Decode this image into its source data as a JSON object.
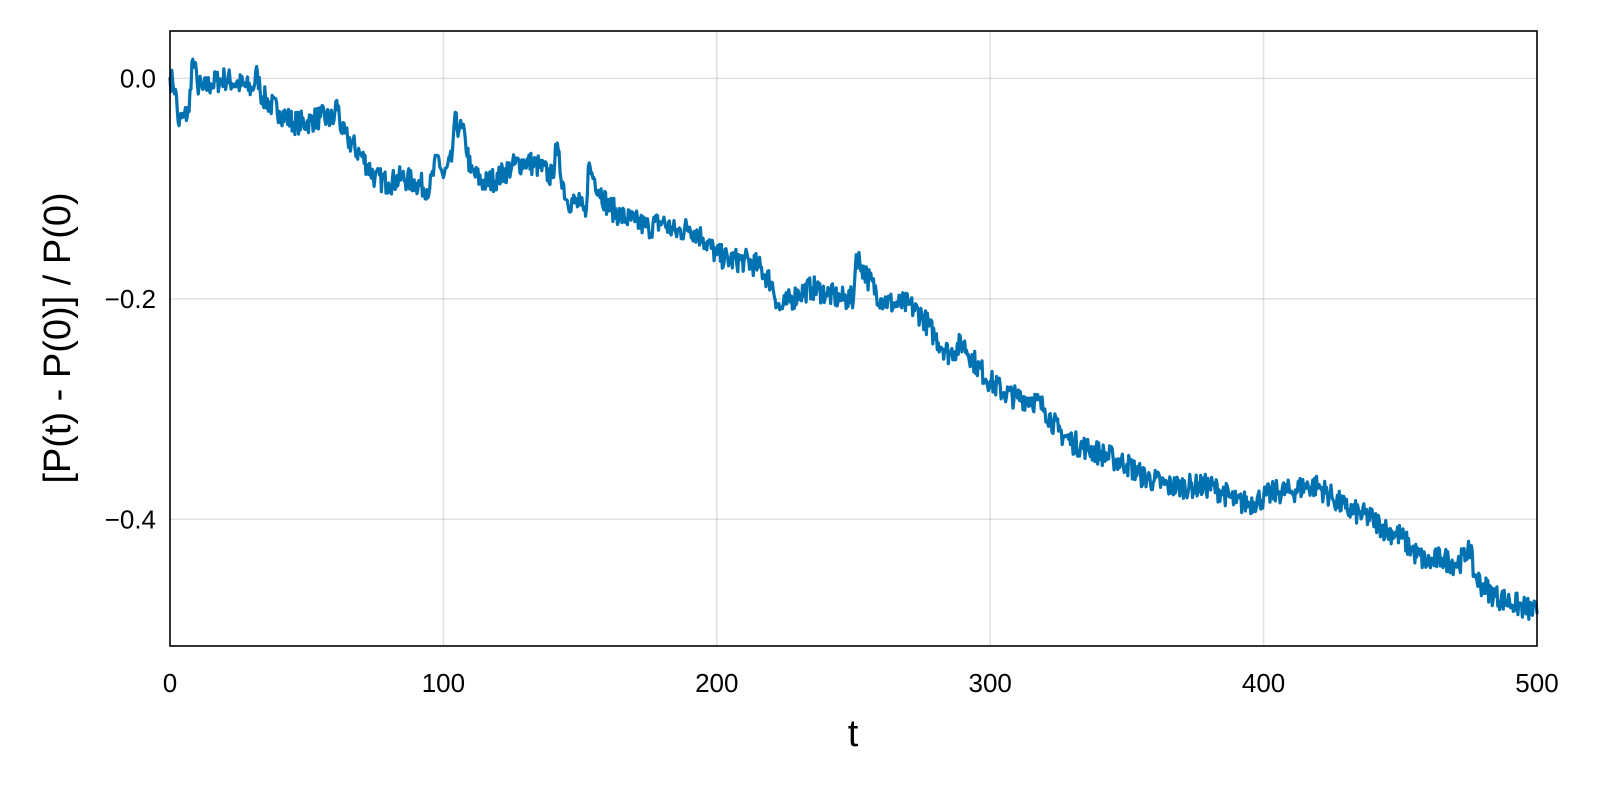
{
  "chart_data": {
    "type": "line",
    "title": "",
    "xlabel": "t",
    "ylabel": "[P(t) - P(0)] / P(0)",
    "xlim": [
      0,
      500
    ],
    "ylim": [
      -0.515,
      0.043
    ],
    "x_ticks": [
      0,
      100,
      200,
      300,
      400,
      500
    ],
    "x_tick_labels": [
      "0",
      "100",
      "200",
      "300",
      "400",
      "500"
    ],
    "y_ticks": [
      0.0,
      -0.2,
      -0.4
    ],
    "y_tick_labels": [
      "0.0",
      "−0.2",
      "−0.4"
    ],
    "grid": true,
    "series_color": "#0072B2",
    "series": [
      {
        "x": [
          0,
          1,
          2,
          3,
          5,
          7,
          8,
          9,
          10,
          12,
          15,
          20,
          25,
          30,
          32,
          33,
          35,
          40,
          45,
          50,
          55,
          60,
          61,
          63,
          65,
          70,
          75,
          80,
          85,
          90,
          95,
          98,
          100,
          103,
          104,
          106,
          108,
          110,
          115,
          120,
          125,
          130,
          135,
          140,
          141,
          145,
          150,
          152,
          153,
          155,
          160,
          165,
          170,
          175,
          180,
          185,
          190,
          195,
          200,
          205,
          210,
          215,
          220,
          223,
          225,
          230,
          235,
          240,
          245,
          250,
          251,
          253,
          255,
          260,
          265,
          270,
          275,
          280,
          285,
          290,
          295,
          300,
          305,
          310,
          315,
          320,
          325,
          330,
          335,
          340,
          345,
          350,
          355,
          360,
          365,
          370,
          375,
          380,
          385,
          390,
          395,
          400,
          405,
          410,
          415,
          420,
          425,
          430,
          435,
          440,
          445,
          450,
          455,
          460,
          465,
          470,
          474,
          475,
          477,
          480,
          485,
          490,
          495,
          500
        ],
        "y": [
          0.0,
          -0.003,
          -0.01,
          -0.04,
          -0.035,
          -0.03,
          0.015,
          0.01,
          -0.005,
          -0.01,
          -0.005,
          0.0,
          -0.005,
          -0.01,
          0.005,
          -0.012,
          -0.02,
          -0.03,
          -0.04,
          -0.04,
          -0.035,
          -0.038,
          -0.02,
          -0.05,
          -0.055,
          -0.07,
          -0.09,
          -0.095,
          -0.09,
          -0.095,
          -0.1,
          -0.07,
          -0.09,
          -0.075,
          -0.04,
          -0.045,
          -0.055,
          -0.085,
          -0.095,
          -0.09,
          -0.08,
          -0.075,
          -0.08,
          -0.09,
          -0.06,
          -0.11,
          -0.115,
          -0.125,
          -0.08,
          -0.09,
          -0.115,
          -0.125,
          -0.13,
          -0.135,
          -0.13,
          -0.14,
          -0.135,
          -0.145,
          -0.16,
          -0.165,
          -0.165,
          -0.17,
          -0.185,
          -0.21,
          -0.205,
          -0.195,
          -0.19,
          -0.195,
          -0.2,
          -0.2,
          -0.16,
          -0.17,
          -0.18,
          -0.2,
          -0.205,
          -0.205,
          -0.215,
          -0.235,
          -0.25,
          -0.24,
          -0.26,
          -0.275,
          -0.285,
          -0.29,
          -0.29,
          -0.3,
          -0.32,
          -0.33,
          -0.335,
          -0.34,
          -0.345,
          -0.35,
          -0.36,
          -0.365,
          -0.37,
          -0.37,
          -0.37,
          -0.37,
          -0.375,
          -0.385,
          -0.385,
          -0.38,
          -0.375,
          -0.375,
          -0.37,
          -0.37,
          -0.38,
          -0.39,
          -0.395,
          -0.4,
          -0.41,
          -0.415,
          -0.43,
          -0.44,
          -0.435,
          -0.44,
          -0.435,
          -0.42,
          -0.45,
          -0.46,
          -0.47,
          -0.475,
          -0.48,
          -0.485
        ]
      }
    ]
  }
}
